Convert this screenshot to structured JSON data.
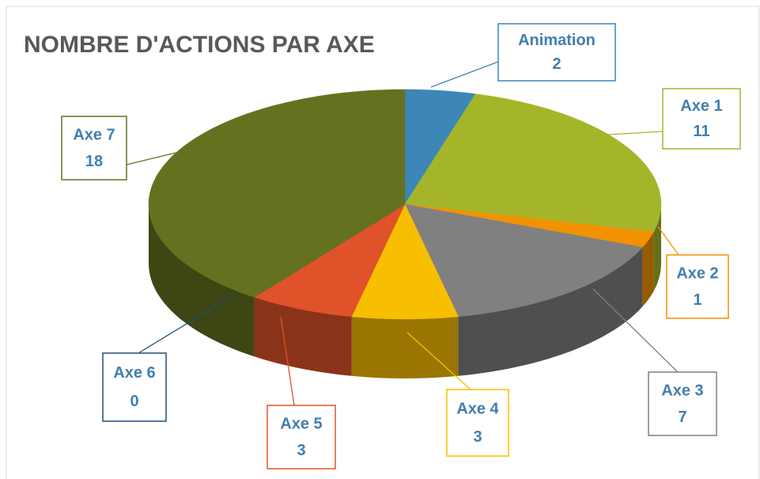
{
  "chart_data": {
    "type": "pie",
    "title": "NOMBRE D'ACTIONS PAR AXE",
    "categories": [
      "Animation",
      "Axe 1",
      "Axe 2",
      "Axe 3",
      "Axe 4",
      "Axe 5",
      "Axe 6",
      "Axe 7"
    ],
    "values": [
      2,
      11,
      1,
      7,
      3,
      3,
      0,
      18
    ],
    "colors": [
      "#3c86b8",
      "#a5b52a",
      "#f39200",
      "#808080",
      "#f8bf00",
      "#e0522a",
      "#1f4e79",
      "#64721f"
    ]
  }
}
